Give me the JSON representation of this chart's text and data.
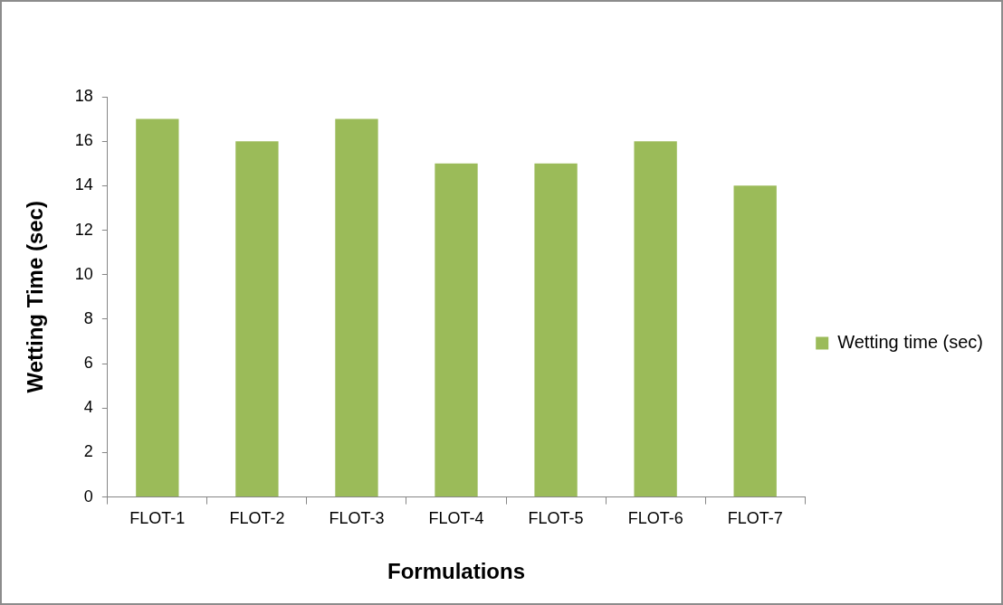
{
  "chart_data": {
    "type": "bar",
    "xlabel": "Formulations",
    "ylabel": "Wetting Time (sec)",
    "categories": [
      "FLOT-1",
      "FLOT-2",
      "FLOT-3",
      "FLOT-4",
      "FLOT-5",
      "FLOT-6",
      "FLOT-7"
    ],
    "series": [
      {
        "name": "Wetting time (sec)",
        "color": "#9bbb59",
        "values": [
          17,
          16,
          17,
          15,
          15,
          16,
          14
        ]
      }
    ],
    "ylim": [
      0,
      18
    ],
    "yticks": [
      0,
      2,
      4,
      6,
      8,
      10,
      12,
      14,
      16,
      18
    ],
    "grid": false,
    "legend": "right"
  }
}
